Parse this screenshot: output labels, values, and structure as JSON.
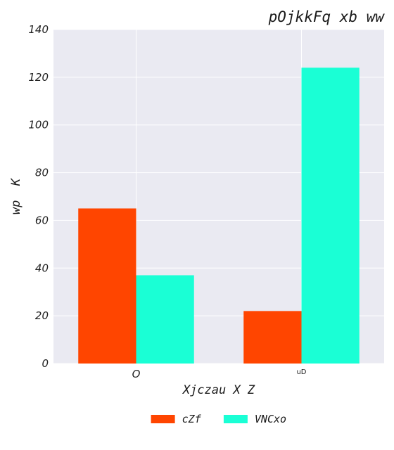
{
  "chart_data": {
    "type": "bar",
    "title": "pOjkkFq xb ww",
    "xlabel": "Xjczau X Z",
    "ylabel": "wp  K",
    "categories": [
      "O",
      "uD"
    ],
    "series": [
      {
        "name": "cZf",
        "values": [
          65,
          22
        ],
        "color": "#ff4500"
      },
      {
        "name": "VNCxo",
        "values": [
          37,
          124
        ],
        "color": "#1affd5"
      }
    ],
    "ylim": [
      0,
      140
    ],
    "yticks": [
      0,
      20,
      40,
      60,
      80,
      100,
      120,
      140
    ],
    "grid": true,
    "legend_position": "bottom-center",
    "background": "#eaeaf2"
  }
}
